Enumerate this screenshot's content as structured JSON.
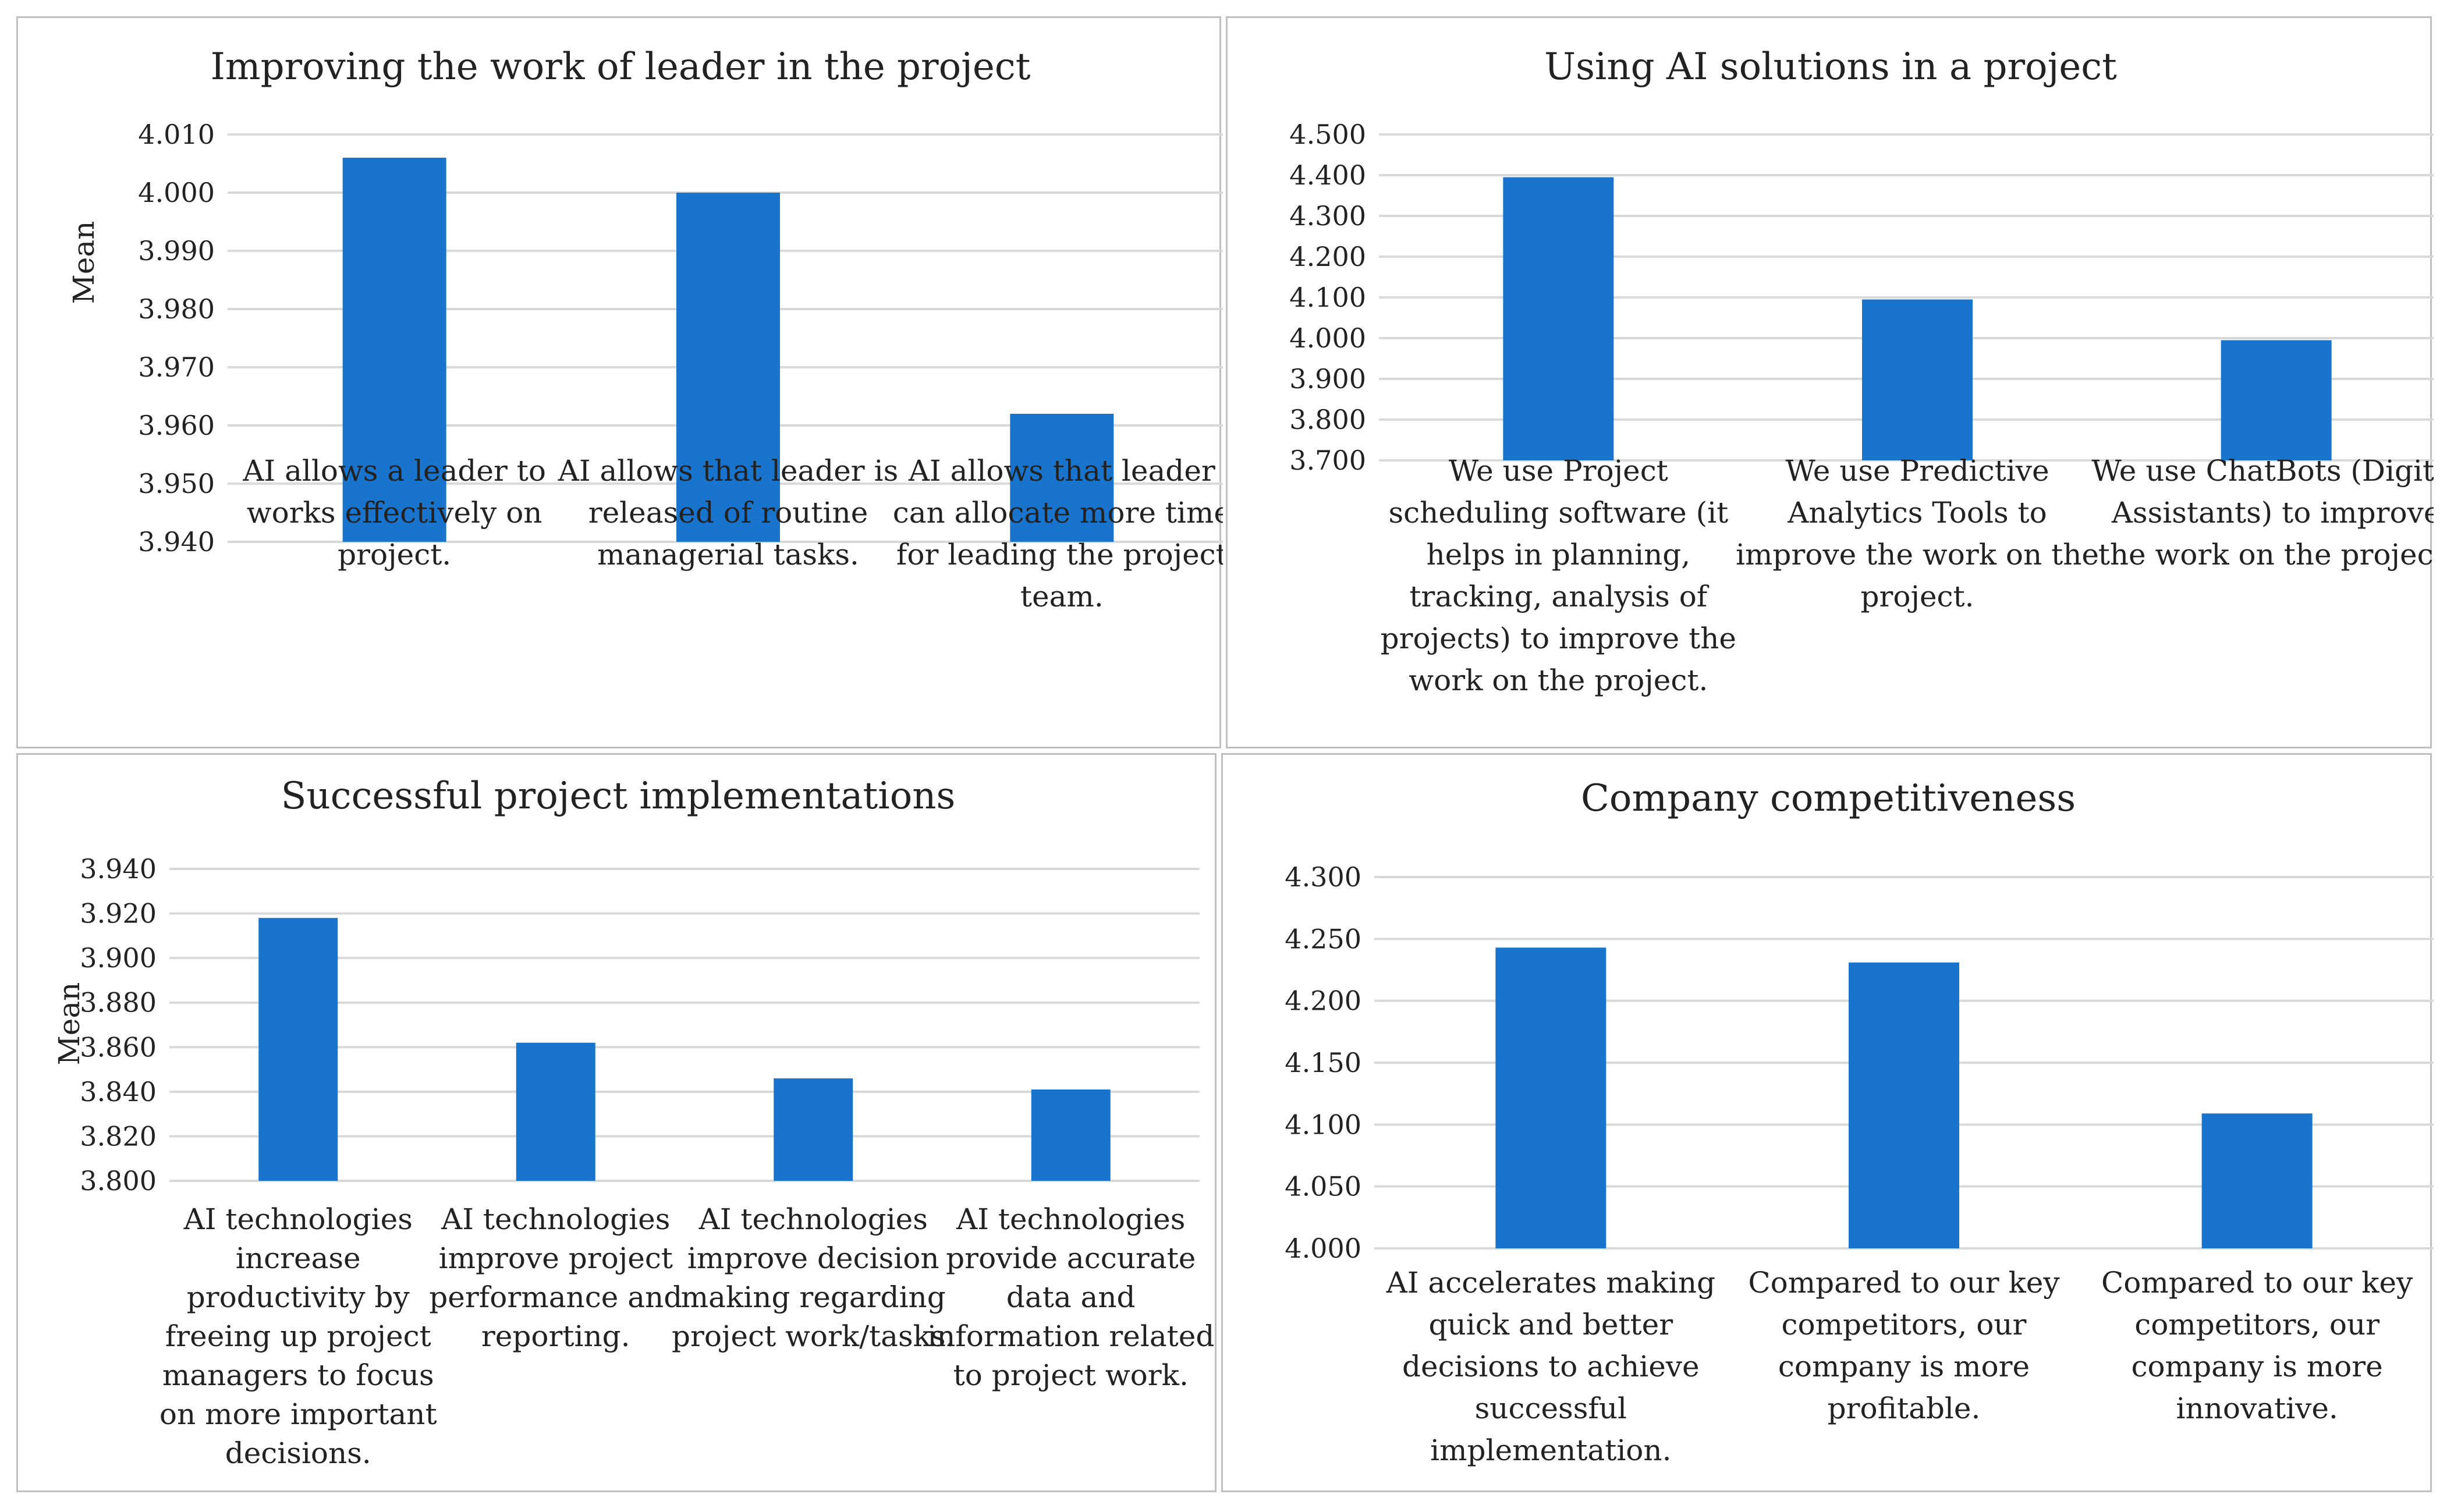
{
  "chart_data": [
    {
      "type": "bar",
      "title": "Improving the work of leader in the project",
      "ylabel": "Mean",
      "xlabel": "",
      "ylim": [
        3.94,
        4.01
      ],
      "yticks": [
        3.94,
        3.95,
        3.96,
        3.97,
        3.98,
        3.99,
        4.0,
        4.01
      ],
      "tick_labels": [
        "3.940",
        "3.950",
        "3.960",
        "3.970",
        "3.980",
        "3.990",
        "4.000",
        "4.010"
      ],
      "grid": true,
      "categories": [
        [
          "AI allows a leader to",
          "works effectively on",
          "project."
        ],
        [
          "AI allows that leader is",
          "released of routine",
          "managerial tasks."
        ],
        [
          "AI allows that leader",
          "can allocate more time",
          "for leading the project",
          "team."
        ]
      ],
      "values": [
        4.006,
        4.0,
        3.962
      ],
      "color": "#1874cd"
    },
    {
      "type": "bar",
      "title": "Using AI solutions in a project",
      "ylabel": "",
      "xlabel": "",
      "ylim": [
        3.7,
        4.5
      ],
      "yticks": [
        3.7,
        3.8,
        3.9,
        4.0,
        4.1,
        4.2,
        4.3,
        4.4,
        4.5
      ],
      "tick_labels": [
        "3.700",
        "3.800",
        "3.900",
        "4.000",
        "4.100",
        "4.200",
        "4.300",
        "4.400",
        "4.500"
      ],
      "grid": true,
      "categories": [
        [
          "We use Project",
          "scheduling software (it",
          "helps in planning,",
          "tracking, analysis of",
          "projects) to improve the",
          "work on the project."
        ],
        [
          "We use Predictive",
          "Analytics Tools to",
          "improve the work on the",
          "project."
        ],
        [
          "We use ChatBots (Digital",
          "Assistants) to improve",
          "the work on the project."
        ]
      ],
      "values": [
        4.395,
        4.095,
        3.995
      ],
      "color": "#1874cd"
    },
    {
      "type": "bar",
      "title": "Successful project implementations",
      "ylabel": "Mean",
      "xlabel": "",
      "ylim": [
        3.8,
        3.94
      ],
      "yticks": [
        3.8,
        3.82,
        3.84,
        3.86,
        3.88,
        3.9,
        3.92,
        3.94
      ],
      "tick_labels": [
        "3.800",
        "3.820",
        "3.840",
        "3.860",
        "3.880",
        "3.900",
        "3.920",
        "3.940"
      ],
      "grid": true,
      "categories": [
        [
          "AI technologies",
          "increase",
          "productivity by",
          "freeing up project",
          "managers to focus",
          "on more important",
          "decisions."
        ],
        [
          "AI technologies",
          "improve project",
          "performance and",
          "reporting."
        ],
        [
          "AI technologies",
          "improve decision",
          "making regarding",
          "project work/tasks."
        ],
        [
          "AI technologies",
          "provide accurate",
          "data and",
          "information related",
          "to project work."
        ]
      ],
      "values": [
        3.918,
        3.862,
        3.846,
        3.841
      ],
      "color": "#1874cd"
    },
    {
      "type": "bar",
      "title": "Company competitiveness",
      "ylabel": "",
      "xlabel": "",
      "ylim": [
        4.0,
        4.3
      ],
      "yticks": [
        4.0,
        4.05,
        4.1,
        4.15,
        4.2,
        4.25,
        4.3
      ],
      "tick_labels": [
        "4.000",
        "4.050",
        "4.100",
        "4.150",
        "4.200",
        "4.250",
        "4.300"
      ],
      "grid": true,
      "categories": [
        [
          "AI accelerates making",
          "quick and better",
          "decisions to achieve",
          "successful",
          "implementation."
        ],
        [
          "Compared to our key",
          "competitors, our",
          "company is more",
          "profitable."
        ],
        [
          "Compared to our key",
          "competitors, our",
          "company is more",
          "innovative."
        ]
      ],
      "values": [
        4.243,
        4.231,
        4.109
      ],
      "color": "#1874cd"
    }
  ]
}
